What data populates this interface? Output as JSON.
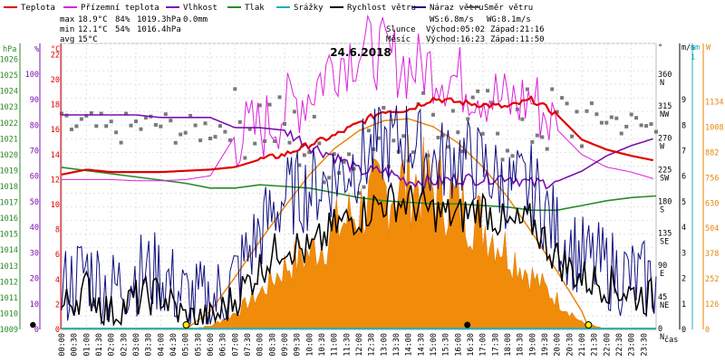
{
  "legend": [
    {
      "label": "Teplota",
      "color": "#e00000"
    },
    {
      "label": "Přízemní teplota",
      "color": "#dd22dd"
    },
    {
      "label": "Vlhkost",
      "color": "#7a10b0"
    },
    {
      "label": "Tlak",
      "color": "#2a8a2a"
    },
    {
      "label": "Srážky",
      "color": "#20b0c0"
    },
    {
      "label": "Rychlost větru",
      "color": "#000000"
    },
    {
      "label": "Náraz větru",
      "color": "#101080"
    },
    {
      "label": "Směr větru",
      "color": "#555555"
    }
  ],
  "stats": {
    "max": {
      "label": "max",
      "temp": "18.9°C",
      "hum": "84%",
      "press": "1019.3hPa",
      "rain": "0.0mm"
    },
    "min": {
      "label": "min",
      "temp": "12.1°C",
      "hum": "54%",
      "press": "1016.4hPa"
    },
    "avg": {
      "label": "avg",
      "temp": "15°C"
    }
  },
  "wind_info": {
    "ws": "WS:6.8m/s",
    "wg": "WG:8.1m/s"
  },
  "sun": {
    "label": "Slunce",
    "rise": "Východ:05:02",
    "set": "Západ:21:16"
  },
  "moon": {
    "label": "Měsíc",
    "rise": "Východ:16:23",
    "set": "Západ:11:50"
  },
  "date": "24.6.2018",
  "axis_units": {
    "press": "hPa",
    "hum": "%",
    "temp": "°C",
    "dir": "°",
    "wind": "m/s",
    "rain": "mm",
    "solar": "W",
    "time": "čas"
  },
  "chart_data": {
    "type": "line",
    "title": "24.6.2018",
    "x_ticks": [
      "00:00",
      "00:30",
      "01:00",
      "01:30",
      "02:00",
      "02:30",
      "03:00",
      "03:30",
      "04:00",
      "04:30",
      "05:00",
      "05:30",
      "06:00",
      "06:30",
      "07:00",
      "07:30",
      "08:00",
      "08:30",
      "09:00",
      "09:30",
      "10:00",
      "10:30",
      "11:00",
      "11:30",
      "12:00",
      "12:30",
      "13:00",
      "13:30",
      "14:00",
      "14:30",
      "15:00",
      "15:30",
      "16:00",
      "16:30",
      "17:00",
      "17:30",
      "18:00",
      "18:30",
      "19:00",
      "19:30",
      "20:00",
      "20:30",
      "21:00",
      "21:30",
      "22:00",
      "22:30",
      "23:00",
      "23:30"
    ],
    "axes": {
      "pressure": {
        "label": "hPa",
        "ticks": [
          1009,
          1010,
          1011,
          1012,
          1013,
          1014,
          1015,
          1016,
          1017,
          1018,
          1019,
          1020,
          1021,
          1022,
          1023,
          1024,
          1025,
          1026
        ]
      },
      "humidity": {
        "label": "%",
        "ticks": [
          0,
          10,
          20,
          30,
          40,
          50,
          60,
          70,
          80,
          90,
          100
        ]
      },
      "temperature": {
        "label": "°C",
        "ticks": [
          0,
          2,
          4,
          6,
          8,
          10,
          12,
          14,
          16,
          18,
          20,
          22
        ]
      },
      "direction": {
        "label": "°",
        "ticks": [
          "0",
          "45",
          "90",
          "135",
          "180",
          "225",
          "270",
          "315",
          "360"
        ],
        "compass": [
          "N",
          "NE",
          "E",
          "SE",
          "S",
          "SW",
          "W",
          "NW",
          "N"
        ]
      },
      "wind": {
        "label": "m/s",
        "ticks": [
          0,
          1,
          2,
          3,
          4,
          5,
          6,
          7,
          8,
          9
        ]
      },
      "rain": {
        "label": "mm",
        "ticks": [
          0,
          1
        ]
      },
      "solar": {
        "label": "W",
        "ticks": [
          0,
          126,
          252,
          378,
          504,
          630,
          756,
          882,
          1008,
          1134
        ]
      }
    },
    "series": [
      {
        "name": "Teplota",
        "unit": "°C",
        "x": [
          0,
          1,
          2,
          3,
          4,
          5,
          6,
          7,
          8,
          9,
          10,
          11,
          12,
          13,
          14,
          15,
          16,
          17,
          18,
          19,
          20,
          21,
          22,
          23,
          24
        ],
        "values": [
          12.4,
          12.8,
          12.6,
          12.6,
          12.6,
          12.7,
          12.8,
          13.0,
          13.6,
          14.0,
          14.8,
          15.5,
          16.5,
          17.5,
          17.6,
          18.5,
          18.2,
          18.0,
          17.8,
          18.4,
          17.2,
          15.2,
          14.4,
          13.9,
          13.5
        ]
      },
      {
        "name": "Přízemní teplota",
        "unit": "°C",
        "x": [
          0,
          1,
          2,
          3,
          4,
          5,
          6,
          7,
          8,
          9,
          10,
          11,
          12,
          13,
          14,
          15,
          16,
          17,
          18,
          19,
          20,
          21,
          22,
          23,
          24
        ],
        "values": [
          12.0,
          12.0,
          12.0,
          11.9,
          11.9,
          12.0,
          12.3,
          15.5,
          16.0,
          17.5,
          19.0,
          21.5,
          22.5,
          22.0,
          21.0,
          21.0,
          20.0,
          19.2,
          18.0,
          18.5,
          16.0,
          14.0,
          13.0,
          12.6,
          12.0
        ]
      },
      {
        "name": "Vlhkost",
        "unit": "%",
        "x": [
          0,
          1,
          2,
          3,
          4,
          5,
          6,
          7,
          8,
          9,
          10,
          11,
          12,
          13,
          14,
          15,
          16,
          17,
          18,
          19,
          20,
          21,
          22,
          23,
          24
        ],
        "values": [
          84,
          84,
          84,
          84,
          83,
          83,
          83,
          79,
          79,
          78,
          72,
          68,
          62,
          62,
          58,
          58,
          59,
          59,
          60,
          57,
          58,
          62,
          68,
          72,
          75
        ]
      },
      {
        "name": "Tlak",
        "unit": "hPa",
        "x": [
          0,
          1,
          2,
          3,
          4,
          5,
          6,
          7,
          8,
          9,
          10,
          11,
          12,
          13,
          14,
          15,
          16,
          17,
          18,
          19,
          20,
          21,
          22,
          23,
          24
        ],
        "values": [
          1019.2,
          1019.0,
          1018.8,
          1018.6,
          1018.4,
          1018.2,
          1017.9,
          1017.9,
          1018.1,
          1018.0,
          1017.9,
          1017.6,
          1017.3,
          1017.1,
          1017.0,
          1016.9,
          1016.9,
          1016.8,
          1016.7,
          1016.5,
          1016.5,
          1016.8,
          1017.1,
          1017.3,
          1017.4
        ]
      },
      {
        "name": "Srážky",
        "unit": "mm",
        "x": [
          0,
          24
        ],
        "values": [
          0,
          0
        ]
      },
      {
        "name": "Rychlost větru",
        "unit": "m/s",
        "x": [
          0,
          1,
          2,
          3,
          4,
          5,
          6,
          7,
          8,
          9,
          10,
          11,
          12,
          13,
          14,
          15,
          16,
          17,
          18,
          19,
          20,
          21,
          22,
          23,
          24
        ],
        "values": [
          0.8,
          1.6,
          0.6,
          1.2,
          1.4,
          0.4,
          0.3,
          1.2,
          2.4,
          3.4,
          3.0,
          4.0,
          4.5,
          5.0,
          5.0,
          4.6,
          4.4,
          4.8,
          4.0,
          4.2,
          2.8,
          2.0,
          1.8,
          1.4,
          1.2
        ]
      },
      {
        "name": "Náraz větru",
        "unit": "m/s",
        "x": [
          0,
          1,
          2,
          3,
          4,
          5,
          6,
          7,
          8,
          9,
          10,
          11,
          12,
          13,
          14,
          15,
          16,
          17,
          18,
          19,
          20,
          21,
          22,
          23,
          24
        ],
        "values": [
          1.5,
          2.4,
          1.5,
          2.2,
          2.2,
          1.2,
          1.0,
          2.0,
          3.8,
          5.2,
          5.5,
          6.0,
          6.6,
          7.2,
          7.5,
          6.5,
          6.8,
          6.4,
          5.5,
          5.6,
          3.8,
          2.8,
          2.4,
          2.0,
          1.8
        ]
      },
      {
        "name": "Směr větru",
        "unit": "°",
        "x": [
          0,
          1,
          2,
          3,
          4,
          5,
          6,
          7,
          8,
          9,
          10,
          11,
          12,
          13,
          14,
          15,
          16,
          17,
          18,
          19,
          20,
          21,
          22,
          23,
          24
        ],
        "values": [
          285,
          290,
          280,
          288,
          290,
          280,
          285,
          290,
          300,
          280,
          260,
          250,
          245,
          270,
          290,
          300,
          280,
          290,
          285,
          290,
          295,
          300,
          300,
          290,
          285
        ]
      },
      {
        "name": "Sluneční záření",
        "unit": "W",
        "x": [
          0,
          5,
          6,
          7,
          8,
          9,
          10,
          11,
          12,
          13,
          14,
          15,
          16,
          17,
          18,
          19,
          20,
          21,
          22,
          24
        ],
        "values": [
          0,
          0,
          20,
          100,
          220,
          380,
          460,
          600,
          720,
          830,
          900,
          860,
          760,
          640,
          480,
          320,
          180,
          40,
          0,
          0
        ]
      },
      {
        "name": "Teoretické záření",
        "unit": "W",
        "x": [
          5,
          6,
          7,
          8,
          9,
          10,
          11,
          12,
          13,
          14,
          15,
          16,
          17,
          18,
          19,
          20,
          21,
          21.3
        ],
        "values": [
          0,
          90,
          260,
          440,
          610,
          770,
          900,
          990,
          1040,
          1050,
          1010,
          930,
          810,
          660,
          480,
          290,
          90,
          0
        ]
      }
    ]
  }
}
